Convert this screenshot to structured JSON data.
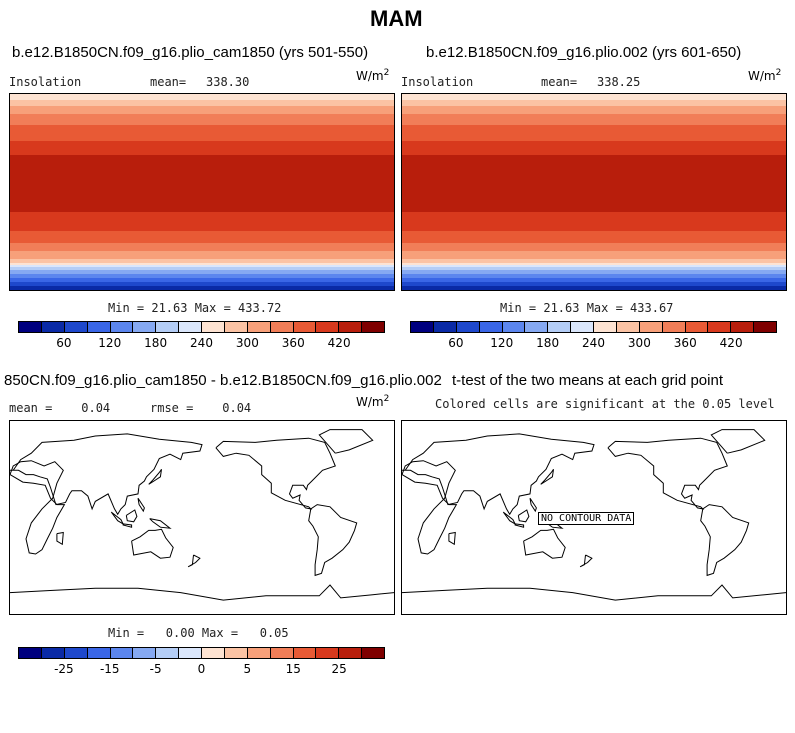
{
  "title": "MAM",
  "panels": {
    "p1": {
      "title": "b.e12.B1850CN.f09_g16.plio_cam1850 (yrs 501-550)",
      "left_label": "Insolation",
      "mean_label": "mean=",
      "mean_value": "338.30",
      "unit": "W/m",
      "unit_sup": "2",
      "minmax": "Min =  21.63 Max = 433.72"
    },
    "p2": {
      "title": "b.e12.B1850CN.f09_g16.plio.002 (yrs 601-650)",
      "left_label": "Insolation",
      "mean_label": "mean=",
      "mean_value": "338.25",
      "unit": "W/m",
      "unit_sup": "2",
      "minmax": "Min =  21.63 Max = 433.67"
    },
    "p3": {
      "title": "850CN.f09_g16.plio_cam1850 - b.e12.B1850CN.f09_g16.plio.002",
      "left_label": "mean =    0.04",
      "rmse_label": "rmse =    0.04",
      "unit": "W/m",
      "unit_sup": "2",
      "minmax": "Min =   0.00 Max =   0.05"
    },
    "p4": {
      "title": "t-test of the two means at each grid point",
      "subtitle": "Colored cells are significant at the 0.05 level",
      "nodata": "NO CONTOUR DATA"
    }
  },
  "colorbars": {
    "top_left": {
      "ticks": [
        "60",
        "120",
        "180",
        "240",
        "300",
        "360",
        "420"
      ]
    },
    "top_right": {
      "ticks": [
        "60",
        "120",
        "180",
        "240",
        "300",
        "360",
        "420"
      ]
    },
    "diff": {
      "ticks": [
        "-25",
        "-15",
        "-5",
        "0",
        "5",
        "15",
        "25"
      ]
    }
  },
  "palette": [
    "#00007f",
    "#0a2aa6",
    "#1e48cc",
    "#3a66e6",
    "#5c86ee",
    "#86a9f2",
    "#b4cdf6",
    "#dae6fb",
    "#fde3d2",
    "#fbc3a4",
    "#f7a07a",
    "#f17e58",
    "#e85a35",
    "#d8391d",
    "#b81e0c",
    "#7f0000"
  ],
  "chart_data": [
    {
      "type": "heatmap",
      "title": "b.e12.B1850CN.f09_g16.plio_cam1850 (yrs 501-550)",
      "variable": "Insolation",
      "units": "W/m2",
      "mean": 338.3,
      "min": 21.63,
      "max": 433.72,
      "colorbar_ticks": [
        60,
        120,
        180,
        240,
        300,
        360,
        420
      ]
    },
    {
      "type": "heatmap",
      "title": "b.e12.B1850CN.f09_g16.plio.002 (yrs 601-650)",
      "variable": "Insolation",
      "units": "W/m2",
      "mean": 338.25,
      "min": 21.63,
      "max": 433.67,
      "colorbar_ticks": [
        60,
        120,
        180,
        240,
        300,
        360,
        420
      ]
    },
    {
      "type": "heatmap",
      "title": "850CN.f09_g16.plio_cam1850 - b.e12.B1850CN.f09_g16.plio.002",
      "units": "W/m2",
      "mean": 0.04,
      "rmse": 0.04,
      "min": 0.0,
      "max": 0.05,
      "colorbar_ticks": [
        -25,
        -15,
        -5,
        0,
        5,
        15,
        25
      ]
    },
    {
      "type": "heatmap",
      "title": "t-test of the two means at each grid point",
      "subtitle": "Colored cells are significant at the 0.05 level",
      "annotation": "NO CONTOUR DATA"
    }
  ]
}
